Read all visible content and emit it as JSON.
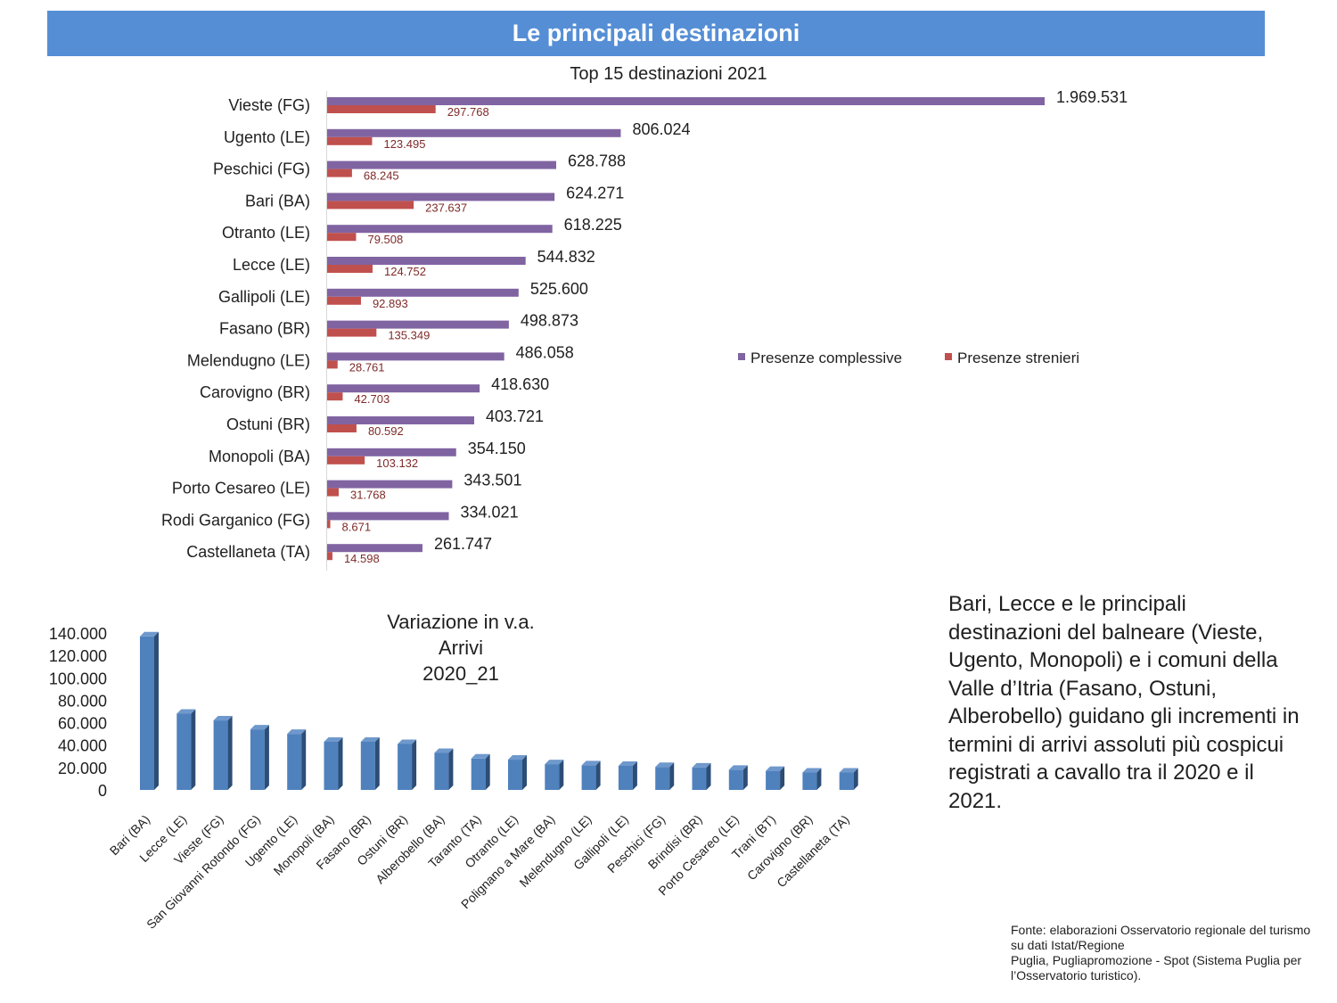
{
  "header": {
    "title": "Le principali destinazioni"
  },
  "commentary": "Bari, Lecce e le principali destinazioni del balneare (Vieste, Ugento, Monopoli) e i comuni della Valle d’Itria (Fasano, Ostuni, Alberobello) guidano gli incrementi in termini di arrivi assoluti più cospicui registrati a cavallo tra il 2020 e il 2021.",
  "source": {
    "line1": "Fonte: elaborazioni Osservatorio regionale del turismo su dati Istat/Regione",
    "line2": "Puglia, Pugliapromozione - Spot (Sistema Puglia per l’Osservatorio turistico)."
  },
  "colors": {
    "banner": "#558ed5",
    "complessive": "#8064a2",
    "stranieri": "#c0504d",
    "arrivi": "#4f81bd"
  },
  "chart_data": [
    {
      "type": "bar",
      "orientation": "horizontal",
      "title": "Top 15 destinazioni 2021",
      "categories": [
        "Vieste (FG)",
        "Ugento (LE)",
        "Peschici (FG)",
        "Bari (BA)",
        "Otranto (LE)",
        "Lecce (LE)",
        "Gallipoli (LE)",
        "Fasano (BR)",
        "Melendugno (LE)",
        "Carovigno (BR)",
        "Ostuni (BR)",
        "Monopoli (BA)",
        "Porto Cesareo (LE)",
        "Rodi Garganico (FG)",
        "Castellaneta (TA)"
      ],
      "series": [
        {
          "name": "Presenze complessive",
          "color": "#8064a2",
          "values": [
            1969531,
            806024,
            628788,
            624271,
            618225,
            544832,
            525600,
            498873,
            486058,
            418630,
            403721,
            354150,
            343501,
            334021,
            261747
          ],
          "labels": [
            "1.969.531",
            "806.024",
            "628.788",
            "624.271",
            "618.225",
            "544.832",
            "525.600",
            "498.873",
            "486.058",
            "418.630",
            "403.721",
            "354.150",
            "343.501",
            "334.021",
            "261.747"
          ]
        },
        {
          "name": "Presenze strenieri",
          "color": "#c0504d",
          "values": [
            297768,
            123495,
            68245,
            237637,
            79508,
            124752,
            92893,
            135349,
            28761,
            42703,
            80592,
            103132,
            31768,
            8671,
            14598
          ],
          "labels": [
            "297.768",
            "123.495",
            "68.245",
            "237.637",
            "79.508",
            "124.752",
            "92.893",
            "135.349",
            "28.761",
            "42.703",
            "80.592",
            "103.132",
            "31.768",
            "8.671",
            "14.598"
          ]
        }
      ],
      "legend": "right",
      "grid": false
    },
    {
      "type": "bar",
      "title": [
        "Variazione in v.a.",
        "Arrivi",
        "2020_21"
      ],
      "categories": [
        "Bari (BA)",
        "Lecce (LE)",
        "Vieste (FG)",
        "San Giovanni Rotondo (FG)",
        "Ugento (LE)",
        "Monopoli (BA)",
        "Fasano (BR)",
        "Ostuni (BR)",
        "Alberobello (BA)",
        "Taranto (TA)",
        "Otranto (LE)",
        "Polignano a Mare (BA)",
        "Melendugno (LE)",
        "Gallipoli (LE)",
        "Peschici (FG)",
        "Brindisi (BR)",
        "Porto Cesareo (LE)",
        "Trani (BT)",
        "Carovigno (BR)",
        "Castellaneta (TA)"
      ],
      "values": [
        137000,
        68000,
        62000,
        54000,
        50000,
        43000,
        43000,
        41000,
        33000,
        28000,
        27000,
        23000,
        22000,
        21500,
        20500,
        20000,
        18000,
        17000,
        15500,
        15500
      ],
      "yticks": [
        "0",
        "20.000",
        "40.000",
        "60.000",
        "80.000",
        "100.000",
        "120.000",
        "140.000"
      ],
      "ylim": [
        0,
        140000
      ],
      "color": "#4f81bd",
      "grid": false
    }
  ]
}
